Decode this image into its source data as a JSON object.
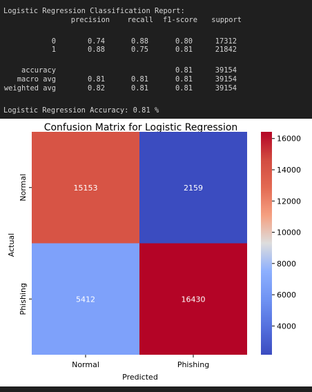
{
  "report": {
    "title": "Logistic Regression Classification Report:",
    "columns": [
      "precision",
      "recall",
      "f1-score",
      "support"
    ],
    "rows": [
      {
        "label": "0",
        "precision": "0.74",
        "recall": "0.88",
        "f1": "0.80",
        "support": "17312"
      },
      {
        "label": "1",
        "precision": "0.88",
        "recall": "0.75",
        "f1": "0.81",
        "support": "21842"
      },
      {
        "label": "accuracy",
        "precision": "",
        "recall": "",
        "f1": "0.81",
        "support": "39154"
      },
      {
        "label": "macro avg",
        "precision": "0.81",
        "recall": "0.81",
        "f1": "0.81",
        "support": "39154"
      },
      {
        "label": "weighted avg",
        "precision": "0.82",
        "recall": "0.81",
        "f1": "0.81",
        "support": "39154"
      }
    ],
    "accuracy_line": "Logistic Regression Accuracy: 0.81 %"
  },
  "chart_data": {
    "type": "heatmap",
    "title": "Confusion Matrix for Logistic Regression",
    "xlabel": "Predicted",
    "ylabel": "Actual",
    "x_categories": [
      "Normal",
      "Phishing"
    ],
    "y_categories": [
      "Normal",
      "Phishing"
    ],
    "values": [
      [
        15153,
        2159
      ],
      [
        5412,
        16430
      ]
    ],
    "colormap": "coolwarm",
    "colorbar": {
      "range": [
        2159,
        16430
      ],
      "ticks": [
        4000,
        6000,
        8000,
        10000,
        12000,
        14000,
        16000
      ]
    },
    "colors": {
      "cell_15153": "#d75445",
      "cell_2159": "#3b4cc0",
      "cell_5412": "#7ea1fa",
      "cell_16430": "#b40426"
    }
  }
}
